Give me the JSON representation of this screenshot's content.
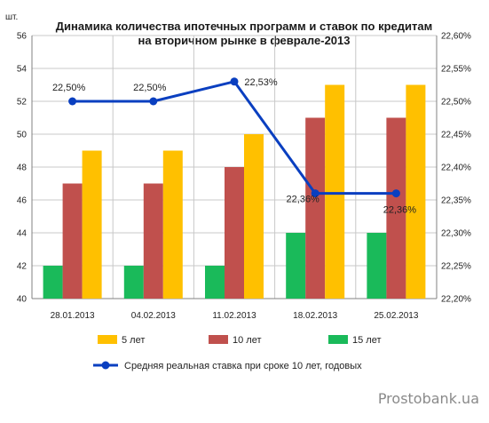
{
  "chart_data": {
    "type": "bar",
    "title_lines": [
      "Динамика количества ипотечных программ и ставок по кредитам",
      "на вторичном рынке в феврале-2013"
    ],
    "y_unit_label": "шт.",
    "categories": [
      "28.01.2013",
      "04.02.2013",
      "11.02.2013",
      "18.02.2013",
      "25.02.2013"
    ],
    "ylim_left": [
      40,
      56
    ],
    "yticks_left": [
      "40",
      "42",
      "44",
      "46",
      "48",
      "50",
      "52",
      "54",
      "56"
    ],
    "ylim_right": [
      22.2,
      22.6
    ],
    "yticks_right": [
      "22,20%",
      "22,25%",
      "22,30%",
      "22,35%",
      "22,40%",
      "22,45%",
      "22,50%",
      "22,55%",
      "22,60%"
    ],
    "series": [
      {
        "name": "15 лет",
        "axis": "left",
        "color": "#1aba5a",
        "values": [
          42,
          42,
          42,
          44,
          44
        ]
      },
      {
        "name": "10 лет",
        "axis": "left",
        "color": "#c0504d",
        "values": [
          47,
          47,
          48,
          51,
          51
        ]
      },
      {
        "name": "5 лет",
        "axis": "left",
        "color": "#ffc000",
        "values": [
          49,
          49,
          50,
          53,
          53
        ]
      }
    ],
    "line_series": {
      "name": "Средняя реальная ставка при сроке 10 лет, годовых",
      "axis": "right",
      "color": "#0a3fc0",
      "values": [
        22.5,
        22.5,
        22.53,
        22.36,
        22.36
      ],
      "labels": [
        "22,50%",
        "22,50%",
        "22,53%",
        "22,36%",
        "22,36%"
      ]
    },
    "legend": [
      {
        "name": "5 лет",
        "color": "#ffc000"
      },
      {
        "name": "10 лет",
        "color": "#c0504d"
      },
      {
        "name": "15 лет",
        "color": "#1aba5a"
      }
    ],
    "grid": true,
    "legend_position": "bottom"
  },
  "watermark": "Prostobank.ua"
}
